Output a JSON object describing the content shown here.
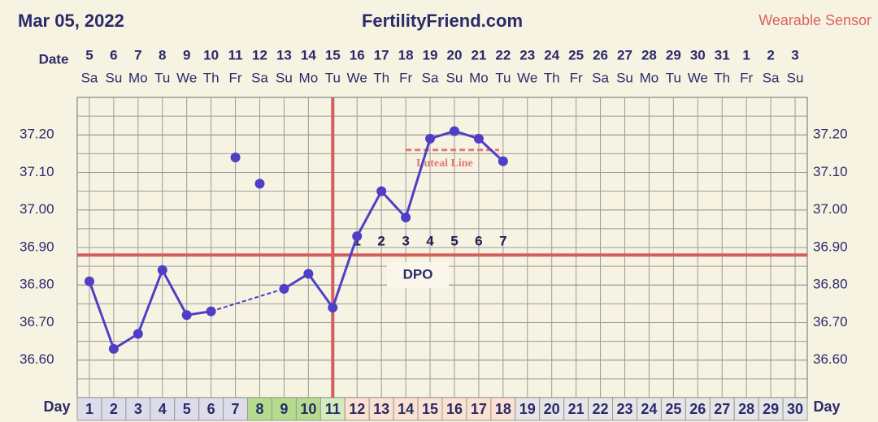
{
  "chart_data": {
    "type": "line",
    "date": "Mar 05, 2022",
    "title": "FertilityFriend.com",
    "subtitle": "Wearable Sensor",
    "date_label": "Date",
    "day_label": "Day",
    "categories": [
      1,
      2,
      3,
      4,
      5,
      6,
      7,
      8,
      9,
      10,
      11,
      12,
      13,
      14,
      15,
      16,
      17,
      18,
      19,
      20,
      21,
      22,
      23,
      24,
      25,
      26,
      27,
      28,
      29,
      30
    ],
    "dates": [
      5,
      6,
      7,
      8,
      9,
      10,
      11,
      12,
      13,
      14,
      15,
      16,
      17,
      18,
      19,
      20,
      21,
      22,
      23,
      24,
      25,
      26,
      27,
      28,
      29,
      30,
      31,
      1,
      2,
      3
    ],
    "weekdays": [
      "Sa",
      "Su",
      "Mo",
      "Tu",
      "We",
      "Th",
      "Fr",
      "Sa",
      "Su",
      "Mo",
      "Tu",
      "We",
      "Th",
      "Fr",
      "Sa",
      "Su",
      "Mo",
      "Tu",
      "We",
      "Th",
      "Fr",
      "Sa",
      "Su",
      "Mo",
      "Tu",
      "We",
      "Th",
      "Fr",
      "Sa",
      "Su"
    ],
    "day_colors": [
      "#dcdcea",
      "#dcdcea",
      "#dcdcea",
      "#dcdcea",
      "#dcdcea",
      "#dcdcea",
      "#dcdcea",
      "#b5dc8c",
      "#b5dc8c",
      "#b5dc8c",
      "#d4ecbc",
      "#fbe2d0",
      "#fbe2d0",
      "#fbe2d0",
      "#fbe2d0",
      "#fbe2d0",
      "#fbe2d0",
      "#fbe2d0",
      "#e6e6e6",
      "#e6e6e6",
      "#e6e6e6",
      "#e6e6e6",
      "#e6e6e6",
      "#e6e6e6",
      "#e6e6e6",
      "#e6e6e6",
      "#e6e6e6",
      "#e6e6e6",
      "#e6e6e6",
      "#e6e6e6"
    ],
    "values": [
      36.81,
      36.63,
      36.67,
      36.84,
      36.72,
      36.73,
      null,
      null,
      36.79,
      36.83,
      36.74,
      36.93,
      37.05,
      36.98,
      37.19,
      37.21,
      37.19,
      37.13,
      null,
      null,
      null,
      null,
      null,
      null,
      null,
      null,
      null,
      null,
      null,
      null
    ],
    "discarded": [
      null,
      null,
      null,
      null,
      null,
      null,
      37.14,
      37.07,
      null,
      null,
      null,
      null,
      null,
      null,
      null,
      null,
      null,
      null,
      null,
      null,
      null,
      null,
      null,
      null,
      null,
      null,
      null,
      null,
      null,
      null
    ],
    "color": "#4f3fc6",
    "ylim": [
      36.5,
      37.3
    ],
    "yticks": [
      {
        "value": 36.6,
        "label": "36.60"
      },
      {
        "value": 36.7,
        "label": "36.70"
      },
      {
        "value": 36.8,
        "label": "36.80"
      },
      {
        "value": 36.9,
        "label": "36.90"
      },
      {
        "value": 37.0,
        "label": "37.00"
      },
      {
        "value": 37.1,
        "label": "37.10"
      },
      {
        "value": 37.2,
        "label": "37.20"
      }
    ],
    "grid": true,
    "coverline": 36.88,
    "ovulation_day": 11,
    "dpo": [
      1,
      2,
      3,
      4,
      5,
      6,
      7
    ],
    "dpo_label": "DPO",
    "luteal_line": {
      "label": "Luteal Line",
      "value": 37.16,
      "from_day": 14,
      "to_day": 18
    }
  }
}
